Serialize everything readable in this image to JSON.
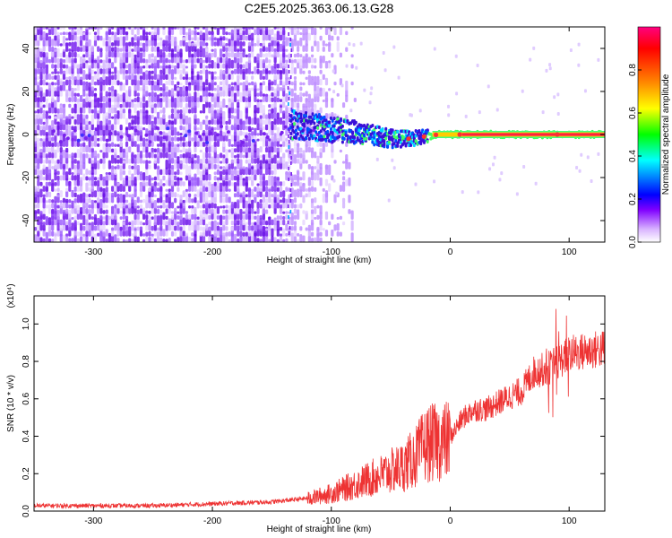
{
  "title": "C2E5.2025.363.06.13.G28",
  "chart_data": [
    {
      "type": "heatmap",
      "title": "",
      "xlabel": "Height of straight line (km)",
      "ylabel": "Frequency (Hz)",
      "xlim": [
        -350,
        130
      ],
      "ylim": [
        -50,
        50
      ],
      "xticks": [
        "-300",
        "-200",
        "-100",
        "0",
        "100"
      ],
      "xtick_values": [
        -300,
        -200,
        -100,
        0,
        100
      ],
      "yticks": [
        "-40",
        "-20",
        "0",
        "20",
        "40"
      ],
      "ytick_values": [
        -40,
        -20,
        0,
        20,
        40
      ],
      "grid": false,
      "colorbar": {
        "label": "Normalized spectral amplitude",
        "range": [
          0,
          1
        ],
        "ticks": [
          "0.0",
          "0.2",
          "0.4",
          "0.6",
          "0.8"
        ],
        "tick_values": [
          0,
          0.2,
          0.4,
          0.6,
          0.8
        ],
        "colormap": [
          "#ffffff",
          "#d9b3ff",
          "#8000ff",
          "#0000ff",
          "#00ffff",
          "#00ff00",
          "#ffff00",
          "#ff8000",
          "#ff0000",
          "#ff0080"
        ]
      },
      "features": {
        "noise_region_x": [
          -350,
          -100
        ],
        "signal_center_frequency": [
          {
            "x": -135,
            "y": 5
          },
          {
            "x": -110,
            "y": 3
          },
          {
            "x": -80,
            "y": 1
          },
          {
            "x": -50,
            "y": -2
          },
          {
            "x": -35,
            "y": -2
          },
          {
            "x": -10,
            "y": 0
          },
          {
            "x": 10,
            "y": 0
          },
          {
            "x": 130,
            "y": 0
          }
        ]
      }
    },
    {
      "type": "line",
      "title": "",
      "xlabel": "Height of straight line (km)",
      "ylabel": "SNR (10 * v/v)",
      "scale_label": "(x10⁴)",
      "xlim": [
        -350,
        130
      ],
      "ylim": [
        0,
        1.15
      ],
      "xticks": [
        "-300",
        "-200",
        "-100",
        "0",
        "100"
      ],
      "xtick_values": [
        -300,
        -200,
        -100,
        0,
        100
      ],
      "yticks": [
        "0.0",
        "0.2",
        "0.4",
        "0.6",
        "0.8",
        "1.0"
      ],
      "ytick_values": [
        0,
        0.2,
        0.4,
        0.6,
        0.8,
        1.0
      ],
      "grid": false,
      "series": [
        {
          "color": "#ee3333",
          "envelope": [
            {
              "x": -350,
              "y": 0.03
            },
            {
              "x": -250,
              "y": 0.03
            },
            {
              "x": -200,
              "y": 0.04
            },
            {
              "x": -150,
              "y": 0.05
            },
            {
              "x": -120,
              "y": 0.07
            },
            {
              "x": -100,
              "y": 0.1
            },
            {
              "x": -80,
              "y": 0.15
            },
            {
              "x": -60,
              "y": 0.2
            },
            {
              "x": -40,
              "y": 0.25
            },
            {
              "x": -30,
              "y": 0.3
            },
            {
              "x": -20,
              "y": 0.38
            },
            {
              "x": 0,
              "y": 0.4
            },
            {
              "x": 10,
              "y": 0.5
            },
            {
              "x": 20,
              "y": 0.55
            },
            {
              "x": 30,
              "y": 0.55
            },
            {
              "x": 50,
              "y": 0.62
            },
            {
              "x": 60,
              "y": 0.65
            },
            {
              "x": 70,
              "y": 0.75
            },
            {
              "x": 85,
              "y": 0.78
            },
            {
              "x": 100,
              "y": 0.85
            },
            {
              "x": 130,
              "y": 0.88
            }
          ]
        }
      ]
    }
  ]
}
